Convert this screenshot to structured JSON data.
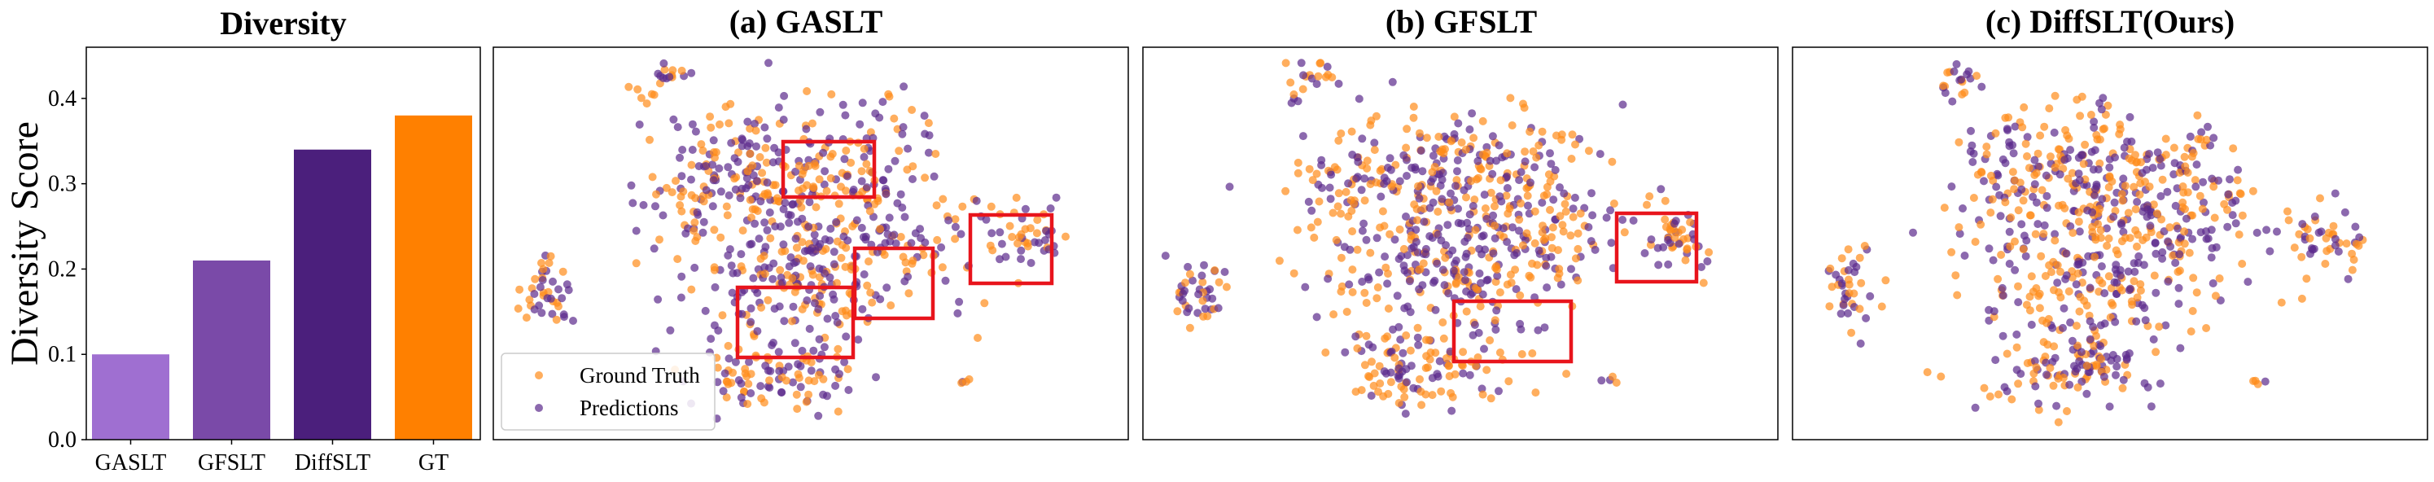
{
  "colors": {
    "ground_truth": "#ff8c1a",
    "predictions": "#5b2a8c",
    "box": "#e8141c",
    "bars": [
      "#9f6fd1",
      "#7a4aa8",
      "#4b1f7c",
      "#ff8000"
    ]
  },
  "chart_data": [
    {
      "type": "bar",
      "title": "Diversity",
      "ylabel": "Diversity Score",
      "xlabel": "",
      "categories": [
        "GASLT",
        "GFSLT",
        "DiffSLT",
        "GT"
      ],
      "values": [
        0.1,
        0.21,
        0.34,
        0.38
      ],
      "ylim": [
        0,
        0.46
      ],
      "yticks": [
        "0.0",
        "0.1",
        "0.2",
        "0.3",
        "0.4"
      ],
      "grid": false
    },
    {
      "type": "scatter",
      "title": "(a) GASLT",
      "series": [
        {
          "name": "Ground Truth"
        },
        {
          "name": "Predictions"
        }
      ],
      "legend": "lower-left",
      "highlight_boxes": 4,
      "axes_visible": false
    },
    {
      "type": "scatter",
      "title": "(b) GFSLT",
      "highlight_boxes": 2,
      "axes_visible": false
    },
    {
      "type": "scatter",
      "title": "(c) DiffSLT(Ours)",
      "highlight_boxes": 0,
      "axes_visible": false
    }
  ]
}
